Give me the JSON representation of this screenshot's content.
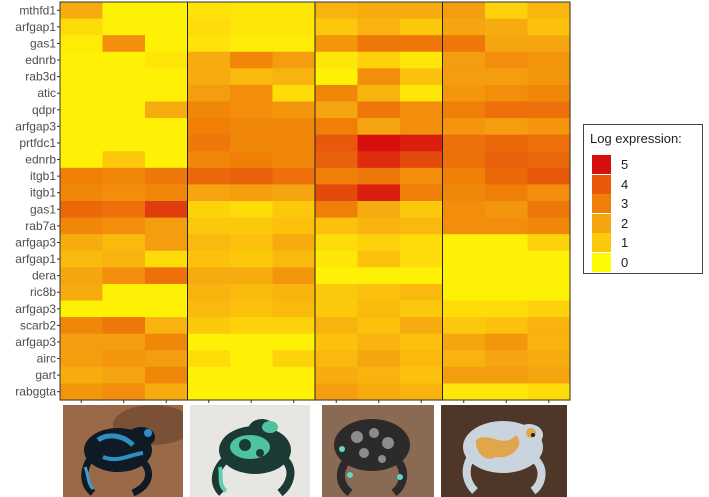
{
  "chart_data": {
    "type": "heatmap",
    "rows": [
      "mthfd1",
      "arfgap1",
      "gas1",
      "ednrb",
      "rab3d",
      "atic",
      "qdpr",
      "arfgap3",
      "prtfdc1",
      "ednrb",
      "itgb1",
      "itgb1",
      "gas1",
      "rab7a",
      "arfgap3",
      "arfgap1",
      "dera",
      "ric8b",
      "arfgap3",
      "scarb2",
      "arfgap3",
      "airc",
      "gart",
      "rabggta"
    ],
    "groups": 4,
    "columns_per_group": 3,
    "values": [
      [
        1.8,
        0.2,
        0.2,
        0.5,
        0.4,
        0.4,
        1.6,
        1.8,
        1.8,
        2.2,
        0.8,
        1.5
      ],
      [
        0.6,
        0.2,
        0.2,
        0.6,
        0.4,
        0.4,
        1.0,
        1.6,
        1.0,
        2.0,
        1.8,
        1.2
      ],
      [
        0.3,
        2.6,
        0.2,
        0.5,
        0.3,
        0.3,
        2.4,
        3.2,
        3.2,
        3.2,
        2.0,
        2.0
      ],
      [
        0.2,
        0.2,
        0.4,
        1.8,
        2.8,
        2.2,
        0.4,
        0.8,
        0.4,
        2.2,
        2.6,
        2.4
      ],
      [
        0.2,
        0.2,
        0.2,
        1.8,
        1.4,
        1.6,
        0.2,
        2.6,
        1.2,
        2.2,
        2.2,
        2.4
      ],
      [
        0.2,
        0.2,
        0.2,
        2.2,
        2.6,
        0.6,
        2.8,
        1.6,
        0.4,
        2.4,
        2.6,
        2.8
      ],
      [
        0.2,
        0.2,
        1.8,
        2.8,
        2.6,
        2.4,
        2.0,
        3.2,
        2.6,
        3.0,
        3.4,
        3.4
      ],
      [
        0.2,
        0.2,
        0.2,
        3.0,
        2.8,
        2.8,
        3.0,
        2.0,
        2.6,
        2.4,
        2.2,
        2.4
      ],
      [
        0.2,
        0.2,
        0.2,
        3.2,
        2.8,
        2.8,
        4.0,
        5.0,
        4.8,
        3.4,
        3.6,
        3.4
      ],
      [
        0.2,
        1.0,
        0.2,
        2.8,
        3.0,
        2.8,
        3.8,
        4.6,
        4.2,
        3.4,
        3.8,
        3.6
      ],
      [
        3.0,
        2.8,
        3.2,
        3.6,
        3.8,
        3.4,
        3.0,
        3.2,
        2.6,
        3.0,
        3.6,
        4.0
      ],
      [
        2.8,
        2.6,
        2.8,
        2.0,
        2.2,
        2.0,
        4.2,
        4.8,
        3.0,
        2.8,
        3.0,
        2.6
      ],
      [
        3.6,
        3.4,
        4.4,
        0.8,
        0.6,
        1.0,
        3.0,
        1.8,
        1.0,
        2.6,
        2.4,
        3.2
      ],
      [
        2.8,
        2.6,
        2.2,
        1.0,
        1.0,
        1.2,
        1.2,
        1.6,
        1.4,
        2.6,
        2.6,
        2.8
      ],
      [
        1.8,
        1.4,
        2.2,
        1.4,
        1.2,
        1.8,
        0.6,
        0.8,
        0.6,
        0.2,
        0.2,
        0.8
      ],
      [
        1.4,
        1.6,
        0.6,
        1.2,
        1.0,
        1.4,
        0.4,
        1.2,
        0.6,
        0.2,
        0.2,
        0.2
      ],
      [
        2.0,
        2.6,
        3.4,
        1.8,
        1.8,
        2.4,
        0.2,
        0.2,
        0.2,
        0.2,
        0.2,
        0.2
      ],
      [
        1.8,
        0.2,
        0.2,
        1.6,
        1.4,
        1.6,
        1.0,
        1.2,
        1.4,
        0.2,
        0.2,
        0.2
      ],
      [
        0.2,
        0.2,
        0.2,
        1.4,
        1.2,
        1.4,
        1.0,
        1.4,
        1.0,
        0.6,
        0.6,
        0.8
      ],
      [
        2.8,
        3.2,
        1.6,
        1.0,
        0.8,
        0.8,
        1.6,
        1.2,
        1.8,
        1.0,
        1.2,
        1.6
      ],
      [
        2.2,
        2.2,
        2.8,
        0.2,
        0.2,
        0.2,
        1.2,
        1.6,
        1.2,
        2.0,
        2.4,
        1.6
      ],
      [
        2.2,
        2.4,
        2.2,
        0.6,
        0.2,
        0.8,
        1.4,
        2.0,
        1.4,
        1.6,
        2.0,
        1.8
      ],
      [
        1.8,
        2.0,
        2.8,
        0.2,
        0.2,
        0.2,
        1.8,
        1.6,
        1.2,
        2.2,
        2.2,
        2.0
      ],
      [
        2.4,
        2.6,
        1.8,
        0.2,
        0.2,
        0.2,
        2.2,
        1.8,
        1.6,
        0.4,
        0.4,
        0.6
      ]
    ],
    "legend": {
      "title": "Log expression:",
      "levels": [
        "5",
        "4",
        "3",
        "2",
        "1",
        "0"
      ],
      "colors": [
        "#d7100f",
        "#e8590c",
        "#f07f08",
        "#f5a50f",
        "#fcc80c",
        "#fffb05"
      ]
    },
    "xlabel": "",
    "ylabel": "",
    "grid": false,
    "legend_position": "right"
  },
  "photos": [
    {
      "name": "blue-black-frog-photo",
      "icon": "frog-blue-black"
    },
    {
      "name": "green-black-frog-photo",
      "icon": "frog-green-black"
    },
    {
      "name": "brown-spotted-frog-photo",
      "icon": "frog-brown-spotted"
    },
    {
      "name": "orange-patterned-frog-photo",
      "icon": "frog-orange-patterned"
    }
  ]
}
